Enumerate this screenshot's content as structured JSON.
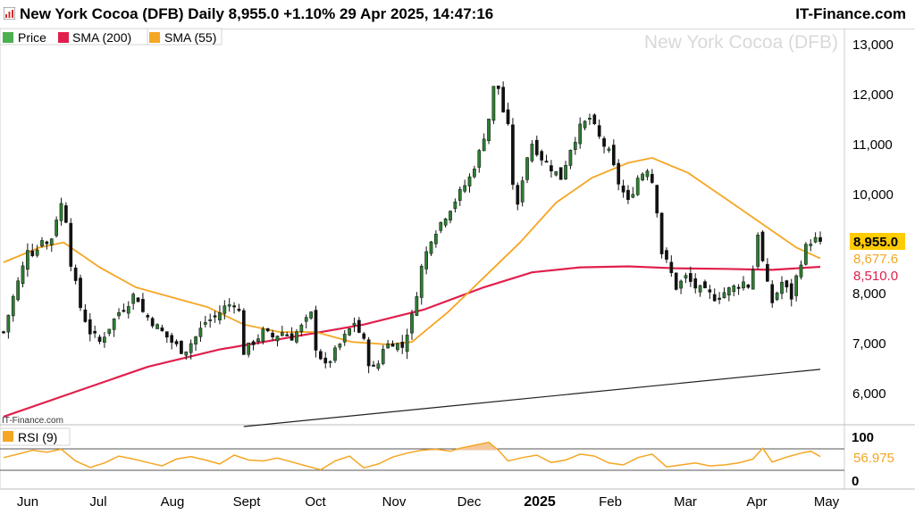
{
  "header": {
    "title": "New York Cocoa (DFB) Daily 8,955.0 +1.10% 29 Apr 2025, 14:47:16",
    "brand": "IT-Finance.com"
  },
  "main_chart": {
    "watermark": "New York Cocoa (DFB)",
    "source_label": "IT-Finance.com",
    "legend": [
      {
        "label": "Price",
        "color": "#2e7d32",
        "icon": "price-swatch"
      },
      {
        "label": "SMA (200)",
        "color": "#e0204c",
        "icon": "sma200-swatch"
      },
      {
        "label": "SMA (55)",
        "color": "#f5a623",
        "icon": "sma55-swatch"
      }
    ],
    "price_axis_labels": [
      "13,000",
      "12,000",
      "11,000",
      "10,000",
      "8,000",
      "7,000",
      "6,000"
    ],
    "last_price_tag": "8,955.0",
    "sma55_tag": "8,677.6",
    "sma200_tag": "8,510.0"
  },
  "rsi_panel": {
    "legend_label": "RSI (9)",
    "axis_labels": [
      "100",
      "0"
    ],
    "last_value_tag": "56.975"
  },
  "x_axis": {
    "labels": [
      "Jun",
      "Jul",
      "Aug",
      "Sept",
      "Oct",
      "Nov",
      "Dec",
      "2025",
      "Feb",
      "Mar",
      "Apr",
      "May"
    ]
  },
  "colors": {
    "up_candle": "#2e7d32",
    "down_candle": "#111111",
    "sma200": "#e0204c",
    "sma55": "#f5a623",
    "trendline": "#222222",
    "rsi_line": "#f5a623",
    "rsi_fill": "#f2c79a"
  },
  "chart_data": {
    "type": "candlestick",
    "title": "New York Cocoa (DFB) Daily",
    "x_labels": [
      "Jun",
      "Jul",
      "Aug",
      "Sept",
      "Oct",
      "Nov",
      "Dec",
      "2025",
      "Feb",
      "Mar",
      "Apr",
      "May"
    ],
    "price_range": [
      5300,
      13300
    ],
    "price_ticks": [
      13000,
      12000,
      11000,
      10000,
      8000,
      7000,
      6000
    ],
    "last_price": 8955.0,
    "change_pct": "+1.10%",
    "close_path": [
      [
        0,
        7200
      ],
      [
        4,
        7900
      ],
      [
        8,
        8500
      ],
      [
        10,
        8900
      ],
      [
        13,
        8750
      ],
      [
        16,
        9100
      ],
      [
        19,
        8900
      ],
      [
        22,
        9500
      ],
      [
        25,
        9900
      ],
      [
        28,
        8600
      ],
      [
        32,
        7700
      ],
      [
        36,
        7200
      ],
      [
        40,
        7000
      ],
      [
        44,
        7300
      ],
      [
        48,
        7600
      ],
      [
        52,
        7800
      ],
      [
        55,
        8000
      ],
      [
        58,
        7600
      ],
      [
        62,
        7400
      ],
      [
        66,
        7200
      ],
      [
        70,
        7000
      ],
      [
        75,
        6800
      ],
      [
        80,
        7100
      ],
      [
        84,
        7400
      ],
      [
        88,
        7500
      ],
      [
        92,
        7700
      ],
      [
        96,
        7800
      ],
      [
        98,
        7600
      ],
      [
        100,
        6800
      ],
      [
        104,
        7000
      ],
      [
        108,
        7200
      ],
      [
        112,
        7100
      ],
      [
        116,
        7200
      ],
      [
        120,
        7100
      ],
      [
        124,
        7300
      ],
      [
        128,
        7550
      ],
      [
        130,
        6900
      ],
      [
        134,
        6500
      ],
      [
        138,
        6800
      ],
      [
        142,
        7100
      ],
      [
        146,
        7400
      ],
      [
        150,
        7000
      ],
      [
        152,
        6600
      ],
      [
        155,
        6400
      ],
      [
        158,
        6900
      ],
      [
        162,
        7000
      ],
      [
        166,
        6900
      ],
      [
        170,
        7500
      ],
      [
        174,
        8500
      ],
      [
        178,
        9100
      ],
      [
        182,
        9400
      ],
      [
        186,
        9700
      ],
      [
        190,
        10000
      ],
      [
        194,
        10300
      ],
      [
        198,
        10800
      ],
      [
        202,
        11500
      ],
      [
        205,
        12400
      ],
      [
        207,
        11800
      ],
      [
        210,
        11300
      ],
      [
        212,
        10200
      ],
      [
        214,
        9700
      ],
      [
        217,
        10600
      ],
      [
        220,
        11000
      ],
      [
        224,
        10700
      ],
      [
        228,
        10500
      ],
      [
        232,
        10300
      ],
      [
        236,
        10900
      ],
      [
        240,
        11300
      ],
      [
        244,
        11500
      ],
      [
        248,
        11100
      ],
      [
        252,
        10800
      ],
      [
        256,
        10200
      ],
      [
        260,
        9800
      ],
      [
        264,
        10300
      ],
      [
        268,
        10500
      ],
      [
        271,
        10100
      ],
      [
        274,
        8800
      ],
      [
        277,
        8500
      ],
      [
        280,
        8100
      ],
      [
        284,
        8300
      ],
      [
        288,
        8100
      ],
      [
        292,
        8000
      ],
      [
        296,
        7900
      ],
      [
        300,
        8000
      ],
      [
        304,
        8100
      ],
      [
        308,
        8200
      ],
      [
        311,
        8100
      ],
      [
        314,
        9200
      ],
      [
        317,
        8300
      ],
      [
        320,
        7800
      ],
      [
        324,
        8200
      ],
      [
        328,
        7900
      ],
      [
        331,
        8500
      ],
      [
        334,
        8900
      ],
      [
        337,
        9100
      ],
      [
        340,
        8955
      ]
    ],
    "sma_55": [
      [
        0,
        8600
      ],
      [
        15,
        8900
      ],
      [
        25,
        9000
      ],
      [
        40,
        8500
      ],
      [
        55,
        8100
      ],
      [
        70,
        7900
      ],
      [
        85,
        7700
      ],
      [
        100,
        7350
      ],
      [
        115,
        7200
      ],
      [
        130,
        7200
      ],
      [
        145,
        7000
      ],
      [
        160,
        6950
      ],
      [
        170,
        7000
      ],
      [
        185,
        7600
      ],
      [
        200,
        8300
      ],
      [
        215,
        9000
      ],
      [
        230,
        9800
      ],
      [
        245,
        10300
      ],
      [
        260,
        10600
      ],
      [
        270,
        10700
      ],
      [
        285,
        10400
      ],
      [
        300,
        9900
      ],
      [
        315,
        9400
      ],
      [
        330,
        8900
      ],
      [
        340,
        8680
      ]
    ],
    "sma_200": [
      [
        0,
        5500
      ],
      [
        30,
        6000
      ],
      [
        60,
        6500
      ],
      [
        90,
        6850
      ],
      [
        120,
        7100
      ],
      [
        150,
        7350
      ],
      [
        175,
        7650
      ],
      [
        200,
        8100
      ],
      [
        220,
        8400
      ],
      [
        240,
        8500
      ],
      [
        260,
        8520
      ],
      [
        280,
        8480
      ],
      [
        300,
        8470
      ],
      [
        320,
        8450
      ],
      [
        340,
        8510
      ]
    ],
    "trendline": [
      [
        100,
        5300
      ],
      [
        340,
        6450
      ]
    ],
    "sma55_last": 8677.6,
    "sma200_last": 8510.0,
    "rsi": {
      "name": "RSI (9)",
      "range": [
        0,
        100
      ],
      "overbought": 70,
      "oversold": 30,
      "last": 56.975,
      "values": [
        [
          0,
          55
        ],
        [
          6,
          62
        ],
        [
          12,
          70
        ],
        [
          18,
          66
        ],
        [
          24,
          72
        ],
        [
          30,
          48
        ],
        [
          36,
          35
        ],
        [
          42,
          44
        ],
        [
          48,
          58
        ],
        [
          54,
          52
        ],
        [
          60,
          45
        ],
        [
          66,
          38
        ],
        [
          72,
          52
        ],
        [
          78,
          57
        ],
        [
          84,
          50
        ],
        [
          90,
          42
        ],
        [
          96,
          60
        ],
        [
          102,
          50
        ],
        [
          108,
          48
        ],
        [
          114,
          54
        ],
        [
          120,
          46
        ],
        [
          126,
          38
        ],
        [
          132,
          30
        ],
        [
          138,
          48
        ],
        [
          144,
          58
        ],
        [
          150,
          34
        ],
        [
          156,
          42
        ],
        [
          162,
          56
        ],
        [
          168,
          64
        ],
        [
          174,
          70
        ],
        [
          180,
          72
        ],
        [
          186,
          68
        ],
        [
          190,
          74
        ],
        [
          196,
          80
        ],
        [
          202,
          86
        ],
        [
          206,
          70
        ],
        [
          210,
          48
        ],
        [
          216,
          55
        ],
        [
          222,
          60
        ],
        [
          228,
          45
        ],
        [
          234,
          50
        ],
        [
          240,
          62
        ],
        [
          246,
          58
        ],
        [
          252,
          44
        ],
        [
          258,
          40
        ],
        [
          264,
          55
        ],
        [
          270,
          62
        ],
        [
          276,
          36
        ],
        [
          282,
          40
        ],
        [
          288,
          44
        ],
        [
          294,
          38
        ],
        [
          300,
          40
        ],
        [
          306,
          44
        ],
        [
          312,
          52
        ],
        [
          316,
          74
        ],
        [
          320,
          46
        ],
        [
          326,
          56
        ],
        [
          332,
          64
        ],
        [
          336,
          68
        ],
        [
          340,
          57
        ]
      ]
    }
  }
}
